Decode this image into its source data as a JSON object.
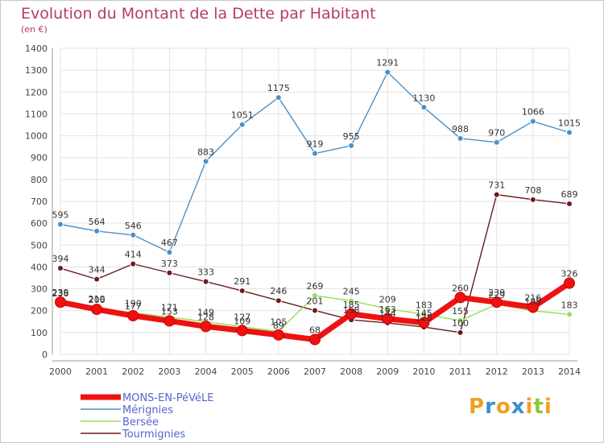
{
  "title": "Evolution du Montant de la Dette par Habitant",
  "unit": "(en €)",
  "logo": {
    "letters": [
      "P",
      "r",
      "o",
      "x",
      "i",
      "t",
      "i"
    ],
    "colors": [
      "#f0a020",
      "#3a8fd0",
      "#f0a020",
      "#3a8fd0",
      "#f0a020",
      "#8cc63e",
      "#f0a020"
    ]
  },
  "chart_data": {
    "type": "line",
    "x": [
      2000,
      2001,
      2002,
      2003,
      2004,
      2005,
      2006,
      2007,
      2008,
      2009,
      2010,
      2011,
      2012,
      2013,
      2014
    ],
    "ylim": [
      0,
      1400
    ],
    "yticks": [
      0,
      100,
      200,
      300,
      400,
      500,
      600,
      700,
      800,
      900,
      1000,
      1100,
      1200,
      1300,
      1400
    ],
    "grid": true,
    "legend_position": "bottom-left",
    "series": [
      {
        "name": "Tourmignies",
        "color": "#6b1a1e",
        "values": [
          394,
          344,
          414,
          373,
          333,
          291,
          246,
          201,
          158,
          144,
          125,
          100,
          null,
          null,
          null
        ]
      },
      {
        "name": "Tourmignies",
        "color": "#6b1a1e",
        "values": [
          null,
          null,
          null,
          null,
          null,
          null,
          null,
          null,
          null,
          null,
          null,
          100,
          731,
          708,
          689
        ]
      },
      {
        "name": "Bersée",
        "color": "#99dd55",
        "values": [
          236,
          210,
          190,
          171,
          149,
          127,
          105,
          269,
          245,
          209,
          183,
          155,
          229,
          199,
          183
        ]
      },
      {
        "name": "Mérignies",
        "color": "#4a90c8",
        "values": [
          595,
          564,
          546,
          467,
          883,
          1051,
          1175,
          919,
          955,
          1291,
          1130,
          988,
          970,
          1066,
          1015
        ]
      },
      {
        "name": "MONS-EN-PéVéLE",
        "color": "#ee1111",
        "values": [
          239,
          206,
          177,
          153,
          128,
          109,
          89,
          68,
          185,
          163,
          145,
          260,
          239,
          216,
          326
        ]
      }
    ],
    "labels": [
      {
        "series": 3,
        "text": [
          "595",
          "564",
          "546",
          "467",
          "883",
          "1051",
          "1175",
          "919",
          "955",
          "1291",
          "1130",
          "988",
          "970",
          "1066",
          "1015"
        ]
      },
      {
        "series": 0,
        "text": [
          "394",
          "344",
          "414",
          "373",
          "333",
          "291",
          "246",
          "201",
          "158",
          "144",
          "125",
          "100"
        ]
      },
      {
        "series": 1,
        "text": [
          null,
          null,
          null,
          null,
          null,
          null,
          null,
          null,
          null,
          null,
          null,
          null,
          "731",
          "708",
          "689"
        ]
      },
      {
        "series": 2,
        "text": [
          "236",
          "210",
          "190",
          "171",
          "149",
          "127",
          "105",
          "269",
          "245",
          "209",
          "183",
          "155",
          "229",
          "199",
          "183"
        ]
      },
      {
        "series": 4,
        "text": [
          "239",
          "206",
          "177",
          "153",
          "128",
          "109",
          "89",
          "68",
          "185",
          "163",
          "145",
          "260",
          "239",
          "216",
          "326"
        ]
      }
    ],
    "legend": [
      {
        "name": "MONS-EN-PéVéLE",
        "color": "#ee1111",
        "width": 7
      },
      {
        "name": "Mérignies",
        "color": "#4a90c8",
        "width": 1.5
      },
      {
        "name": "Bersée",
        "color": "#99dd55",
        "width": 1.5
      },
      {
        "name": "Tourmignies",
        "color": "#6b1a1e",
        "width": 1.5
      }
    ]
  }
}
